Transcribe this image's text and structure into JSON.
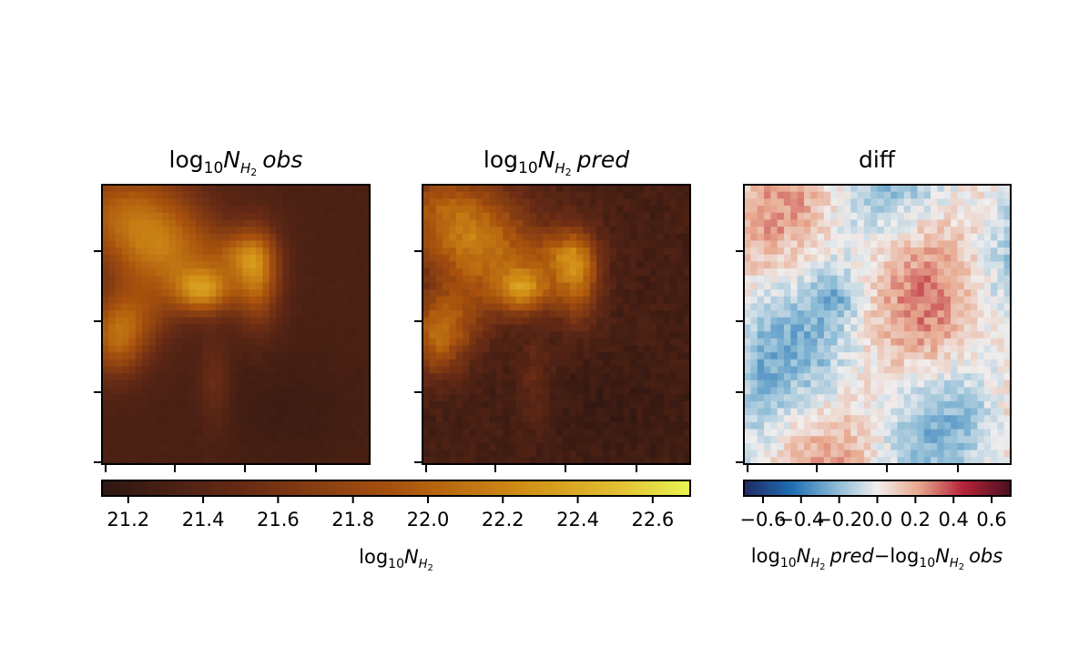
{
  "chart_data": [
    {
      "type": "heatmap",
      "panel": "obs",
      "title_main": "log",
      "title_sub": "10",
      "title_var": "N",
      "title_var_sub": "H",
      "title_var_sub2": "2",
      "title_suffix": "obs",
      "grid": false,
      "colormap": "afmhot-like (dark brown to yellow)"
    },
    {
      "type": "heatmap",
      "panel": "pred",
      "title_main": "log",
      "title_sub": "10",
      "title_var": "N",
      "title_var_sub": "H",
      "title_var_sub2": "2",
      "title_suffix": "pred",
      "grid": false,
      "colormap": "afmhot-like (dark brown to yellow)"
    },
    {
      "type": "heatmap",
      "panel": "diff",
      "title": "diff",
      "grid": false,
      "colormap": "RdBu_r (blue to white to red)"
    }
  ],
  "colorbars": {
    "main": {
      "range": [
        21.13,
        22.7
      ],
      "ticks": [
        "21.2",
        "21.4",
        "21.6",
        "21.8",
        "22.0",
        "22.2",
        "22.4",
        "22.6"
      ],
      "tick_values": [
        21.2,
        21.4,
        21.6,
        21.8,
        22.0,
        22.2,
        22.4,
        22.6
      ],
      "label_main": "log",
      "label_sub": "10",
      "label_var": "N",
      "label_var_sub": "H",
      "label_var_sub2": "2"
    },
    "diff": {
      "range": [
        -0.7,
        0.7
      ],
      "ticks": [
        "−0.6",
        "−0.4",
        "−0.2",
        "0.0",
        "0.2",
        "0.4",
        "0.6"
      ],
      "tick_values": [
        -0.6,
        -0.4,
        -0.2,
        0.0,
        0.2,
        0.4,
        0.6
      ],
      "label_part1": "log",
      "label_part1_sub": "10",
      "label_part1_var": "N",
      "label_part1_var_sub": "H",
      "label_part1_var_sub2": "2",
      "label_part1_suffix": "pred",
      "label_minus": "−",
      "label_part2": "log",
      "label_part2_sub": "10",
      "label_part2_var": "N",
      "label_part2_var_sub": "H",
      "label_part2_var_sub2": "2",
      "label_part2_suffix": "obs"
    }
  }
}
